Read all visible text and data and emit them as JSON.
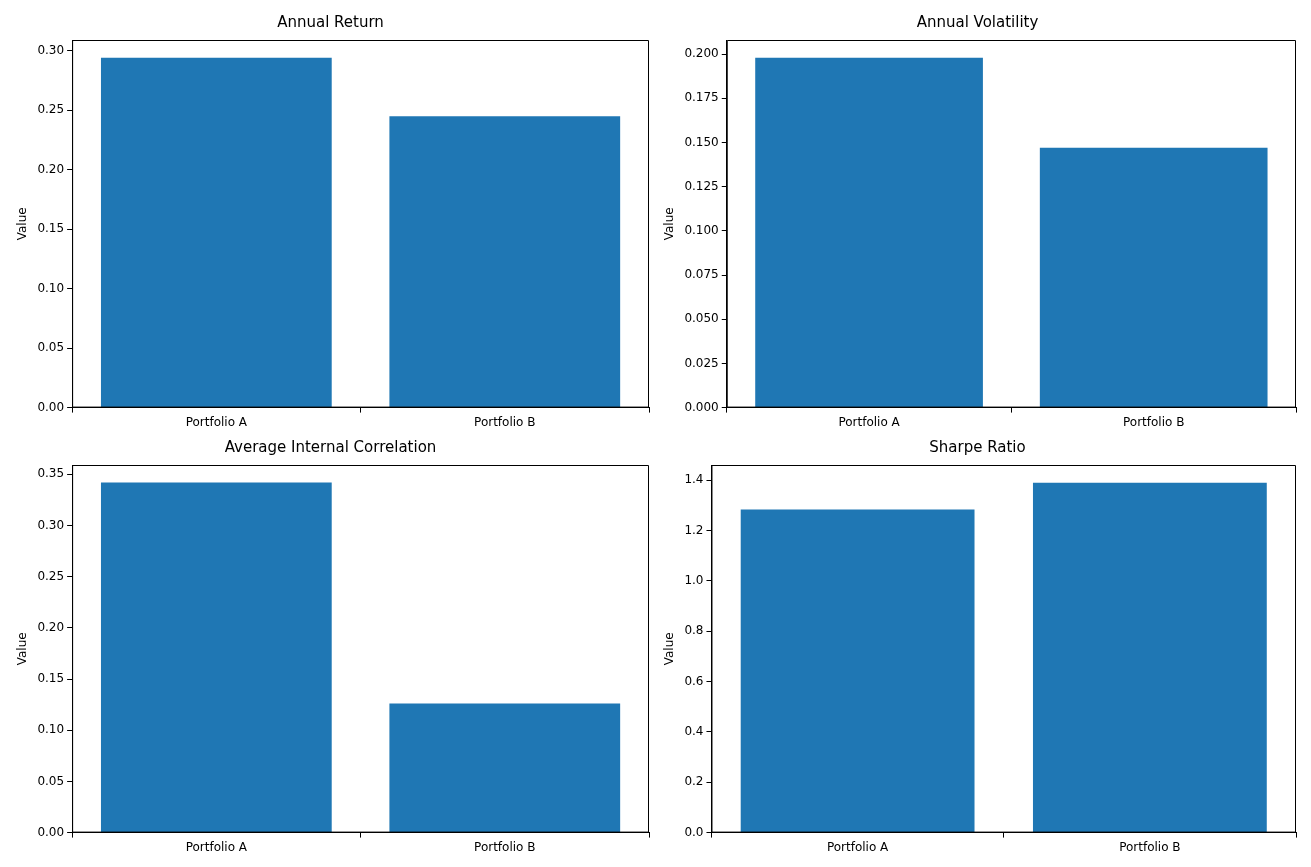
{
  "chart_data": [
    {
      "type": "bar",
      "title": "Annual Return",
      "ylabel": "Value",
      "categories": [
        "Portfolio A",
        "Portfolio B"
      ],
      "values": [
        0.294,
        0.245
      ],
      "color": "#1f77b4",
      "ylim": [
        0,
        0.309
      ],
      "yticks": [
        {
          "value": 0,
          "label": "0.00"
        },
        0.05,
        {
          "value": 0.1,
          "label": "0.10"
        },
        0.15,
        {
          "value": 0.2,
          "label": "0.20"
        },
        0.25,
        {
          "value": 0.3,
          "label": "0.30"
        }
      ],
      "grid": false,
      "legend": false
    },
    {
      "type": "bar",
      "title": "Annual Volatility",
      "ylabel": "Value",
      "categories": [
        "Portfolio A",
        "Portfolio B"
      ],
      "values": [
        0.198,
        0.147
      ],
      "color": "#1f77b4",
      "ylim": [
        0,
        0.208
      ],
      "yticks": [
        {
          "value": 0,
          "label": "0.000"
        },
        {
          "value": 0.025,
          "label": "0.025"
        },
        {
          "value": 0.05,
          "label": "0.050"
        },
        {
          "value": 0.075,
          "label": "0.075"
        },
        {
          "value": 0.1,
          "label": "0.100"
        },
        {
          "value": 0.125,
          "label": "0.125"
        },
        {
          "value": 0.15,
          "label": "0.150"
        },
        {
          "value": 0.175,
          "label": "0.175"
        },
        {
          "value": 0.2,
          "label": "0.200"
        }
      ],
      "grid": false,
      "legend": false
    },
    {
      "type": "bar",
      "title": "Average Internal Correlation",
      "ylabel": "Value",
      "categories": [
        "Portfolio A",
        "Portfolio B"
      ],
      "values": [
        0.342,
        0.126
      ],
      "color": "#1f77b4",
      "ylim": [
        0,
        0.359
      ],
      "yticks": [
        {
          "value": 0,
          "label": "0.00"
        },
        0.05,
        {
          "value": 0.1,
          "label": "0.10"
        },
        0.15,
        {
          "value": 0.2,
          "label": "0.20"
        },
        0.25,
        {
          "value": 0.3,
          "label": "0.30"
        },
        0.35
      ],
      "grid": false,
      "legend": false
    },
    {
      "type": "bar",
      "title": "Sharpe Ratio",
      "ylabel": "Value",
      "categories": [
        "Portfolio A",
        "Portfolio B"
      ],
      "values": [
        1.283,
        1.39
      ],
      "color": "#1f77b4",
      "ylim": [
        0,
        1.46
      ],
      "yticks": [
        {
          "value": 0,
          "label": "0.0"
        },
        0.2,
        0.4,
        0.6,
        0.8,
        {
          "value": 1,
          "label": "1.0"
        },
        1.2,
        1.4
      ],
      "grid": false,
      "legend": false
    }
  ]
}
